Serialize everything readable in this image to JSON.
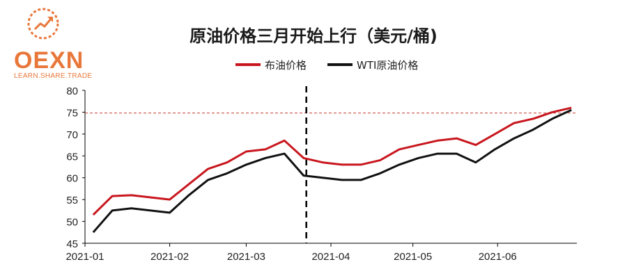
{
  "brand": {
    "name": "OEXN",
    "tagline": "LEARN.SHARE.TRADE",
    "color": "#e8773a",
    "icon": "trend-arrow-icon"
  },
  "chart_data": {
    "type": "line",
    "title": "原油价格三月开始上行（美元/桶)",
    "xlabel": "",
    "ylabel": "",
    "ylim": [
      45,
      80
    ],
    "yticks": [
      45,
      50,
      55,
      60,
      65,
      70,
      75,
      80
    ],
    "xticks": [
      "2021-01",
      "2021-02",
      "2021-03",
      "2021-04",
      "2021-05",
      "2021-06"
    ],
    "legend_position": "top-center",
    "reference_line": {
      "y": 74.8,
      "style": "dashed",
      "color": "#c0392b"
    },
    "vertical_marker": {
      "x": "2021-03-23",
      "style": "dashed"
    },
    "x": [
      "2021-01-04",
      "2021-01-11",
      "2021-01-18",
      "2021-01-25",
      "2021-02-01",
      "2021-02-08",
      "2021-02-15",
      "2021-02-22",
      "2021-03-01",
      "2021-03-08",
      "2021-03-15",
      "2021-03-22",
      "2021-03-29",
      "2021-04-05",
      "2021-04-12",
      "2021-04-19",
      "2021-04-26",
      "2021-05-03",
      "2021-05-10",
      "2021-05-17",
      "2021-05-24",
      "2021-05-31",
      "2021-06-07",
      "2021-06-14",
      "2021-06-21",
      "2021-06-28"
    ],
    "series": [
      {
        "name": "布油价格",
        "color": "#c8161d",
        "values": [
          51.5,
          55.8,
          56.0,
          55.5,
          55.0,
          58.5,
          62.0,
          63.5,
          66.0,
          66.5,
          68.5,
          64.5,
          63.5,
          63.0,
          63.0,
          64.0,
          66.5,
          67.5,
          68.5,
          69.0,
          67.5,
          70.0,
          72.5,
          73.5,
          75.0,
          76.0
        ]
      },
      {
        "name": "WTI原油价格",
        "color": "#111111",
        "values": [
          47.5,
          52.5,
          53.0,
          52.5,
          52.0,
          56.0,
          59.5,
          61.0,
          63.0,
          64.5,
          65.5,
          60.5,
          60.0,
          59.5,
          59.5,
          61.0,
          63.0,
          64.5,
          65.5,
          65.5,
          63.5,
          66.5,
          69.0,
          71.0,
          73.5,
          75.5
        ]
      }
    ]
  }
}
